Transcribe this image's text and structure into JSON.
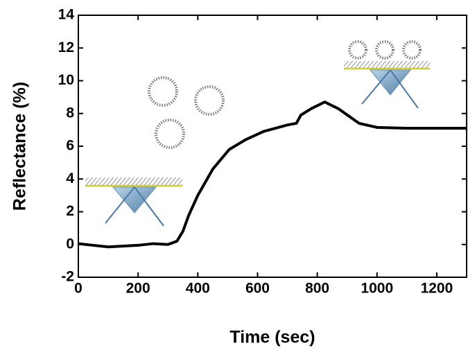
{
  "chart_data": {
    "type": "line",
    "x_label": "Time (sec)",
    "y_label": "Reflectance (%)",
    "x": [
      0,
      100,
      200,
      250,
      300,
      330,
      350,
      370,
      400,
      450,
      505,
      560,
      620,
      700,
      730,
      745,
      780,
      825,
      870,
      940,
      1000,
      1100,
      1300
    ],
    "series": [
      {
        "color": "#000000",
        "values": [
          0.05,
          -0.15,
          -0.05,
          0.05,
          0,
          0.2,
          0.8,
          1.8,
          3.0,
          4.6,
          5.8,
          6.4,
          6.9,
          7.3,
          7.4,
          7.9,
          8.3,
          8.7,
          8.3,
          7.4,
          7.15,
          7.1,
          7.1
        ]
      }
    ],
    "xlim": [
      0,
      1300
    ],
    "xticks": [
      0,
      200,
      400,
      600,
      800,
      1000,
      1200
    ],
    "ylim": [
      -2,
      14
    ],
    "yticks": [
      -2,
      0,
      2,
      4,
      6,
      8,
      10,
      12,
      14
    ]
  }
}
